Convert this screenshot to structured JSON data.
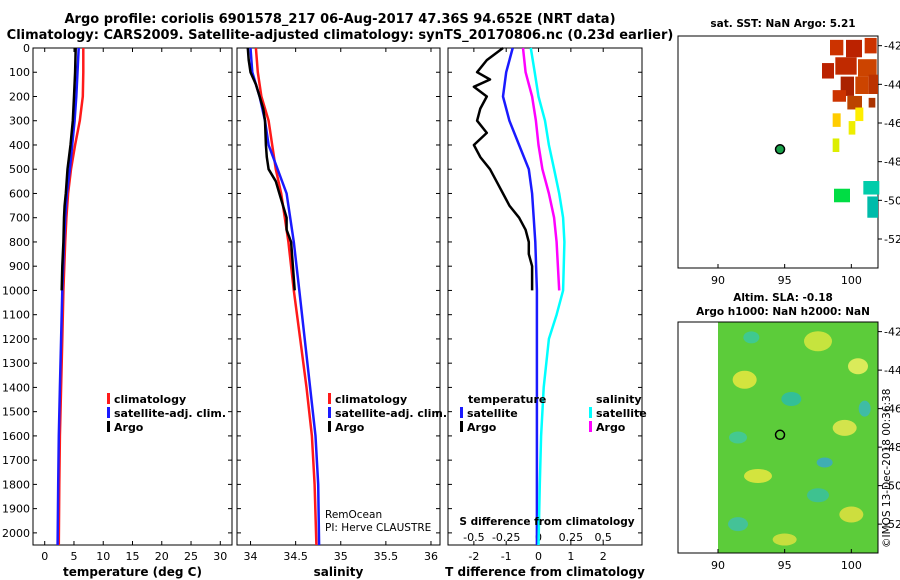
{
  "header": {
    "title_line1": "Argo profile: coriolis 6901578_217 06-Aug-2017 47.36S 94.652E (NRT data)",
    "title_line2": "Climatology: CARS2009. Satellite-adjusted climatology: synTS_20170806.nc (0.23d earlier)"
  },
  "colors": {
    "climatology": "#ff1a1a",
    "satellite": "#1a1aff",
    "argo": "#000000",
    "satellite_s": "#00ffff",
    "argo_s": "#ff00ff"
  },
  "legends": {
    "clim": "climatology",
    "sat_adj": "satellite-adj. clim.",
    "argo": "Argo",
    "temperature": "temperature",
    "salinity": "salinity",
    "satellite": "satellite"
  },
  "annotations": {
    "rem_ocean": "RemOcean",
    "pi": "PI: Herve CLAUSTRE",
    "s_diff": "S difference from climatology",
    "imos": "©IMOS 13-Dec-2018 00:36:38"
  },
  "maps": {
    "sst_title": "sat. SST: NaN Argo: 5.21",
    "sla_title1": "Altim. SLA: -0.18",
    "sla_title2": "Argo h1000: NaN h2000: NaN"
  },
  "chart_data": [
    {
      "type": "line",
      "id": "temperature",
      "xlabel": "temperature (deg C)",
      "ylabel": "",
      "xlim": [
        -2,
        32
      ],
      "ylim": [
        2050,
        0
      ],
      "xticks": [
        0,
        5,
        10,
        15,
        20,
        25,
        30
      ],
      "xticklabels": [
        "0",
        "5",
        "10",
        "15",
        "20",
        "25",
        "30"
      ],
      "yticks": [
        0,
        100,
        200,
        300,
        400,
        500,
        600,
        700,
        800,
        900,
        1000,
        1100,
        1200,
        1300,
        1400,
        1500,
        1600,
        1700,
        1800,
        1900,
        2000
      ],
      "yticklabels": [
        "0",
        "100",
        "200",
        "300",
        "400",
        "500",
        "600",
        "700",
        "800",
        "900",
        "1000",
        "1100",
        "1200",
        "1300",
        "1400",
        "1500",
        "1600",
        "1700",
        "1800",
        "1900",
        "2000"
      ],
      "series": [
        {
          "name": "climatology",
          "color": "#ff1a1a",
          "depth": [
            0,
            100,
            200,
            300,
            400,
            500,
            600,
            700,
            800,
            1000,
            1200,
            1400,
            1600,
            1800,
            2050
          ],
          "values": [
            6.6,
            6.6,
            6.5,
            6.0,
            5.2,
            4.5,
            4.0,
            3.7,
            3.5,
            3.2,
            3.0,
            2.8,
            2.6,
            2.5,
            2.4
          ]
        },
        {
          "name": "satellite-adj. clim.",
          "color": "#1a1aff",
          "depth": [
            0,
            100,
            200,
            300,
            400,
            500,
            600,
            700,
            800,
            1000,
            1200,
            1400,
            1600,
            1800,
            2050
          ],
          "values": [
            5.8,
            5.6,
            5.4,
            5.1,
            4.7,
            4.3,
            3.8,
            3.5,
            3.3,
            3.0,
            2.8,
            2.6,
            2.4,
            2.3,
            2.2
          ]
        },
        {
          "name": "Argo",
          "color": "#000000",
          "depth": [
            0,
            100,
            200,
            300,
            400,
            500,
            600,
            650,
            700,
            800,
            900,
            1000
          ],
          "values": [
            5.3,
            5.2,
            5.0,
            4.8,
            4.4,
            3.9,
            3.6,
            3.4,
            3.3,
            3.2,
            3.0,
            2.9
          ]
        }
      ]
    },
    {
      "type": "line",
      "id": "salinity",
      "xlabel": "salinity",
      "xlim": [
        33.85,
        36.1
      ],
      "ylim": [
        2050,
        0
      ],
      "xticks": [
        34,
        34.5,
        35,
        35.5,
        36
      ],
      "xticklabels": [
        "34",
        "34.5",
        "35",
        "35.5",
        "36"
      ],
      "series": [
        {
          "name": "climatology",
          "color": "#ff1a1a",
          "depth": [
            0,
            100,
            200,
            300,
            400,
            500,
            600,
            700,
            800,
            1000,
            1200,
            1400,
            1600,
            1800,
            2050
          ],
          "values": [
            34.06,
            34.08,
            34.12,
            34.2,
            34.24,
            34.28,
            34.34,
            34.38,
            34.42,
            34.48,
            34.55,
            34.62,
            34.68,
            34.71,
            34.73
          ]
        },
        {
          "name": "satellite-adj. clim.",
          "color": "#1a1aff",
          "depth": [
            0,
            100,
            150,
            200,
            300,
            400,
            500,
            600,
            700,
            800,
            1000,
            1200,
            1400,
            1600,
            1800,
            2050
          ],
          "values": [
            34.0,
            34.02,
            34.06,
            34.1,
            34.16,
            34.2,
            34.3,
            34.4,
            34.44,
            34.48,
            34.54,
            34.6,
            34.66,
            34.72,
            34.75,
            34.76
          ]
        },
        {
          "name": "Argo",
          "color": "#000000",
          "depth": [
            0,
            50,
            100,
            150,
            200,
            250,
            300,
            400,
            450,
            500,
            550,
            600,
            650,
            700,
            750,
            800,
            850,
            900,
            950,
            1000
          ],
          "values": [
            33.97,
            33.98,
            34.0,
            34.06,
            34.1,
            34.14,
            34.16,
            34.17,
            34.18,
            34.2,
            34.28,
            34.32,
            34.36,
            34.4,
            34.4,
            34.45,
            34.46,
            34.47,
            34.48,
            34.49
          ]
        }
      ]
    },
    {
      "type": "line",
      "id": "difference",
      "xlabel": "T difference from climatology",
      "xlim": [
        -2.8,
        3.2
      ],
      "ylim": [
        2050,
        0
      ],
      "xticks": [
        -2,
        -1,
        0,
        1,
        2
      ],
      "xticklabels": [
        "-2",
        "-1",
        "0",
        "1",
        "2"
      ],
      "s_xticks": [
        -0.5,
        -0.25,
        0,
        0.25,
        0.5
      ],
      "s_xticklabels": [
        "-0.5",
        "-0.25",
        "0",
        "0.25",
        "0.5"
      ],
      "s_xlim": [
        -0.7,
        0.8
      ],
      "series": [
        {
          "name": "temperature satellite",
          "color": "#1a1aff",
          "axis": "T",
          "depth": [
            0,
            100,
            200,
            300,
            400,
            500,
            600,
            700,
            800,
            1000,
            1200,
            1400,
            1600,
            1800,
            2050
          ],
          "values": [
            -0.8,
            -1.0,
            -1.1,
            -0.9,
            -0.6,
            -0.3,
            -0.2,
            -0.15,
            -0.1,
            -0.05,
            -0.05,
            -0.05,
            -0.05,
            -0.05,
            -0.05
          ]
        },
        {
          "name": "temperature Argo",
          "color": "#000000",
          "axis": "T",
          "depth": [
            0,
            50,
            100,
            130,
            160,
            200,
            250,
            300,
            350,
            400,
            450,
            500,
            550,
            600,
            650,
            700,
            750,
            800,
            850,
            900,
            950,
            1000
          ],
          "values": [
            -1.1,
            -1.6,
            -1.9,
            -1.5,
            -2.0,
            -1.6,
            -1.8,
            -1.9,
            -1.6,
            -2.0,
            -1.8,
            -1.5,
            -1.3,
            -1.1,
            -0.9,
            -0.6,
            -0.4,
            -0.3,
            -0.3,
            -0.2,
            -0.2,
            -0.2
          ]
        },
        {
          "name": "salinity satellite",
          "color": "#00ffff",
          "axis": "S",
          "depth": [
            0,
            100,
            200,
            300,
            400,
            500,
            600,
            700,
            800,
            1000,
            1100,
            1200,
            1400,
            1600,
            1800,
            2050
          ],
          "values": [
            -0.06,
            -0.03,
            0.0,
            0.05,
            0.08,
            0.12,
            0.16,
            0.19,
            0.2,
            0.19,
            0.14,
            0.08,
            0.04,
            0.02,
            0.01,
            0.0
          ]
        },
        {
          "name": "salinity Argo",
          "color": "#ff00ff",
          "axis": "S",
          "depth": [
            0,
            100,
            200,
            300,
            400,
            500,
            600,
            700,
            800,
            900,
            1000
          ],
          "values": [
            -0.12,
            -0.1,
            -0.05,
            -0.02,
            0.0,
            0.03,
            0.08,
            0.12,
            0.14,
            0.15,
            0.16
          ]
        }
      ]
    },
    {
      "type": "heatmap",
      "id": "sst_map",
      "title": "sat. SST: NaN Argo: 5.21",
      "xlim": [
        87,
        102
      ],
      "ylim": [
        -53.5,
        -41.5
      ],
      "xticks": [
        90,
        95,
        100
      ],
      "xticklabels": [
        "90",
        "95",
        "100"
      ],
      "yticks": [
        -42,
        -44,
        -46,
        -48,
        -50,
        -52
      ],
      "yticklabels": [
        "-42",
        "-44",
        "-46",
        "-48",
        "-50",
        "-52"
      ],
      "argo_position": [
        94.652,
        -47.36
      ]
    },
    {
      "type": "heatmap",
      "id": "sla_map",
      "title": "Altim. SLA: -0.18",
      "xlim": [
        87,
        102
      ],
      "ylim": [
        -53.5,
        -41.5
      ],
      "xticks": [
        90,
        95,
        100
      ],
      "xticklabels": [
        "90",
        "95",
        "100"
      ],
      "yticks": [
        -42,
        -44,
        -46,
        -48,
        -50,
        -52
      ],
      "yticklabels": [
        "-42",
        "-44",
        "-46",
        "-48",
        "-50",
        "-52"
      ],
      "argo_position": [
        94.652,
        -47.36
      ]
    }
  ]
}
